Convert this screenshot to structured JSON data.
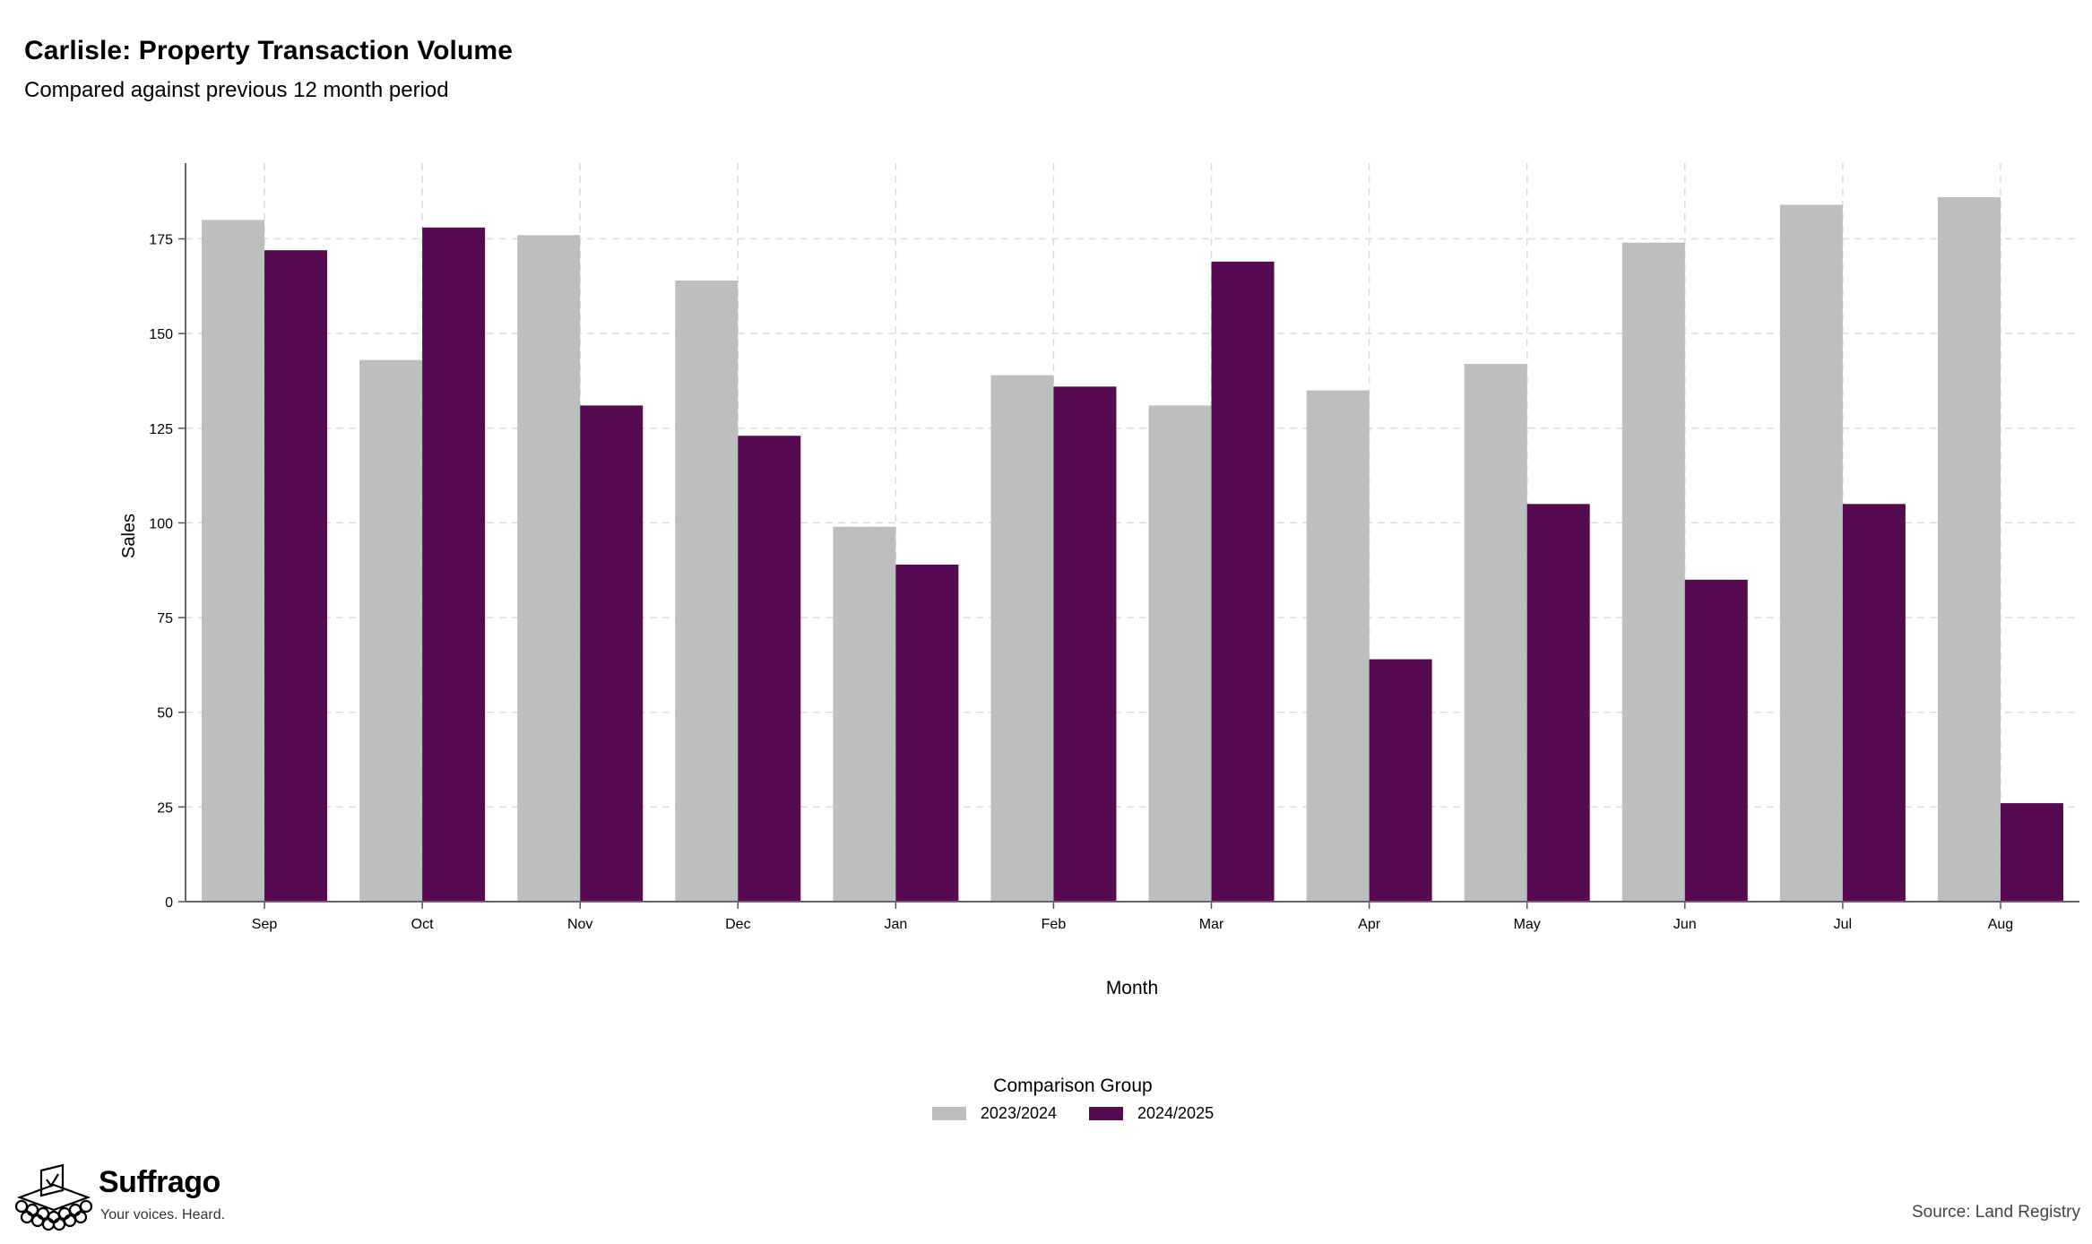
{
  "chart_data": {
    "type": "bar",
    "title": "Carlisle: Property Transaction Volume",
    "subtitle": "Compared against previous 12 month period",
    "xlabel": "Month",
    "ylabel": "Sales",
    "categories": [
      "Sep",
      "Oct",
      "Nov",
      "Dec",
      "Jan",
      "Feb",
      "Mar",
      "Apr",
      "May",
      "Jun",
      "Jul",
      "Aug"
    ],
    "series": [
      {
        "name": "2023/2024",
        "color": "#bebebe",
        "values": [
          180,
          143,
          176,
          164,
          99,
          139,
          131,
          135,
          142,
          174,
          184,
          186
        ]
      },
      {
        "name": "2024/2025",
        "color": "#560a50",
        "values": [
          172,
          178,
          131,
          123,
          89,
          136,
          169,
          64,
          105,
          85,
          105,
          26
        ]
      }
    ],
    "yticks": [
      0,
      25,
      50,
      75,
      100,
      125,
      150,
      175
    ],
    "ylim": [
      0,
      195
    ],
    "grid": true,
    "legend": {
      "title": "Comparison Group",
      "placement": "bottom-center"
    }
  },
  "branding": {
    "name": "Suffrago",
    "tagline": "Your voices. Heard."
  },
  "source": "Source: Land Registry"
}
